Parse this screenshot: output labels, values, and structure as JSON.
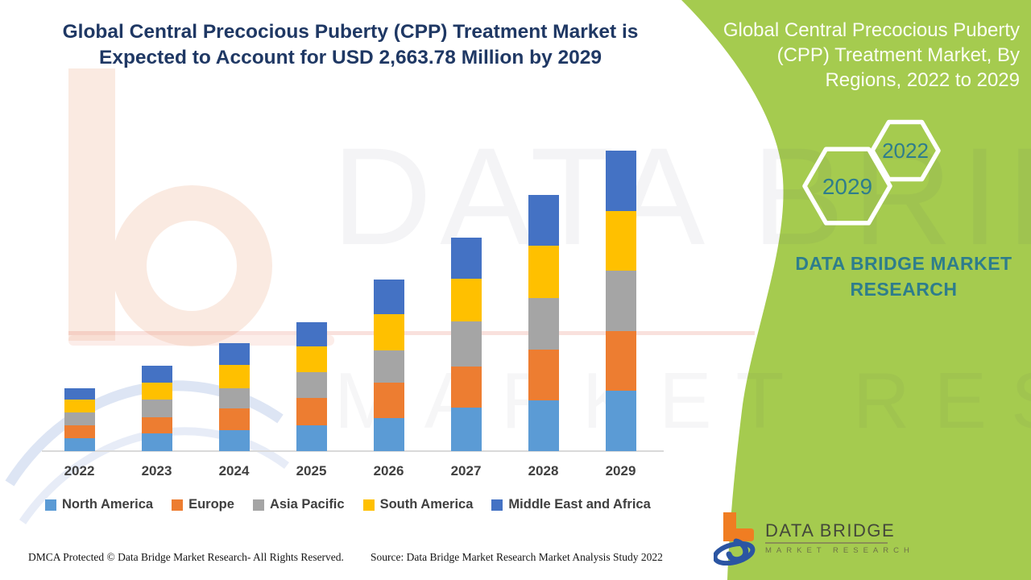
{
  "header": {
    "title_line1": "Global Central Precocious Puberty (CPP) Treatment Market is",
    "title_line2": "Expected to Account for USD 2,663.78 Million by 2029"
  },
  "side_panel": {
    "title_line1": "Global Central Precocious Puberty",
    "title_line2": "(CPP) Treatment Market, By",
    "title_line3": "Regions, 2022 to 2029",
    "hexagon_year_small": "2022",
    "hexagon_year_large": "2029",
    "brand_line1": "DATA BRIDGE MARKET",
    "brand_line2": "RESEARCH",
    "panel_color": "#A5CB4F",
    "accent_text_color": "#2E7D8C"
  },
  "chart_data": {
    "type": "bar",
    "stacked": true,
    "title": "Global Central Precocious Puberty (CPP) Treatment Market, By Regions, 2022 to 2029",
    "unit": "USD Million",
    "annotation": "Market expected to account for USD 2,663.78 Million by 2029",
    "categories": [
      "2022",
      "2023",
      "2024",
      "2025",
      "2026",
      "2027",
      "2028",
      "2029"
    ],
    "series": [
      {
        "name": "North America",
        "color": "#5B9BD5",
        "values": [
          113,
          156,
          184,
          227,
          290,
          383,
          453,
          538
        ]
      },
      {
        "name": "Europe",
        "color": "#ED7D31",
        "values": [
          113,
          142,
          198,
          248,
          319,
          368,
          446,
          524
        ]
      },
      {
        "name": "Asia Pacific",
        "color": "#A5A5A5",
        "values": [
          120,
          156,
          177,
          227,
          283,
          397,
          461,
          538
        ]
      },
      {
        "name": "South America",
        "color": "#FFC000",
        "values": [
          113,
          156,
          205,
          227,
          326,
          383,
          461,
          531
        ]
      },
      {
        "name": "Middle East and Africa",
        "color": "#4472C4",
        "values": [
          99,
          149,
          191,
          213,
          305,
          361,
          453,
          532.78
        ]
      }
    ],
    "totals": [
      558,
      759,
      955,
      1142,
      1523,
      1892,
      2274,
      2663.78
    ],
    "ylim": [
      0,
      2800
    ],
    "grid": false,
    "legend_position": "bottom",
    "x_axis_visible": true,
    "y_axis_visible": false
  },
  "watermark": {
    "line1": "DATA BRIDGE",
    "line2": "MARKET RESEARCH"
  },
  "footer": {
    "dmca": "DMCA Protected © Data Bridge Market Research- All Rights Reserved.",
    "source": "Source: Data Bridge Market Research Market Analysis Study 2022",
    "logo_title": "DATA BRIDGE",
    "logo_subtitle": "MARKET RESEARCH"
  }
}
